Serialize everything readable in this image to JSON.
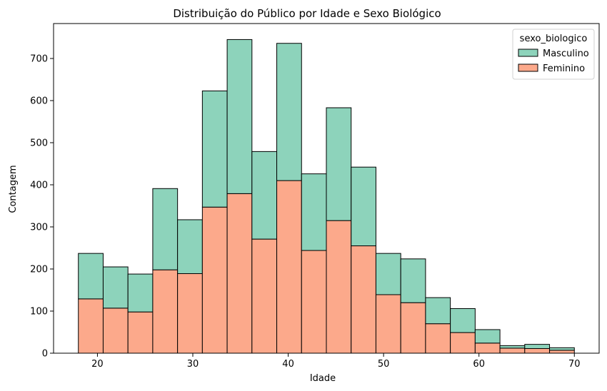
{
  "chart_data": {
    "type": "bar",
    "stacked": true,
    "title": "Distribuição do Público por Idade e Sexo Biológico",
    "xlabel": "Idade",
    "ylabel": "Contagem",
    "xlim": [
      15.4,
      72.6
    ],
    "ylim": [
      0,
      783
    ],
    "xticks": [
      20,
      30,
      40,
      50,
      60,
      70
    ],
    "yticks": [
      0,
      100,
      200,
      300,
      400,
      500,
      600,
      700
    ],
    "bin_edges": [
      18,
      20.6,
      23.2,
      25.8,
      28.4,
      31,
      33.6,
      36.2,
      38.8,
      41.4,
      44,
      46.6,
      49.2,
      51.8,
      54.4,
      57,
      59.6,
      62.2,
      64.8,
      67.4,
      70
    ],
    "legend": {
      "title": "sexo_biologico",
      "position": "top-right"
    },
    "series": [
      {
        "name": "Masculino",
        "color": "#8dd3bb",
        "values": [
          108,
          98,
          90,
          193,
          128,
          276,
          366,
          208,
          326,
          182,
          268,
          187,
          98,
          104,
          62,
          57,
          32,
          6,
          10,
          6
        ]
      },
      {
        "name": "Feminino",
        "color": "#fca98b",
        "values": [
          129,
          107,
          98,
          198,
          189,
          347,
          379,
          271,
          410,
          244,
          315,
          255,
          139,
          120,
          70,
          49,
          24,
          12,
          11,
          7
        ]
      }
    ],
    "totals": [
      237,
      205,
      188,
      391,
      317,
      623,
      745,
      479,
      736,
      426,
      583,
      442,
      237,
      224,
      132,
      106,
      56,
      18,
      21,
      13
    ],
    "grid": false
  }
}
